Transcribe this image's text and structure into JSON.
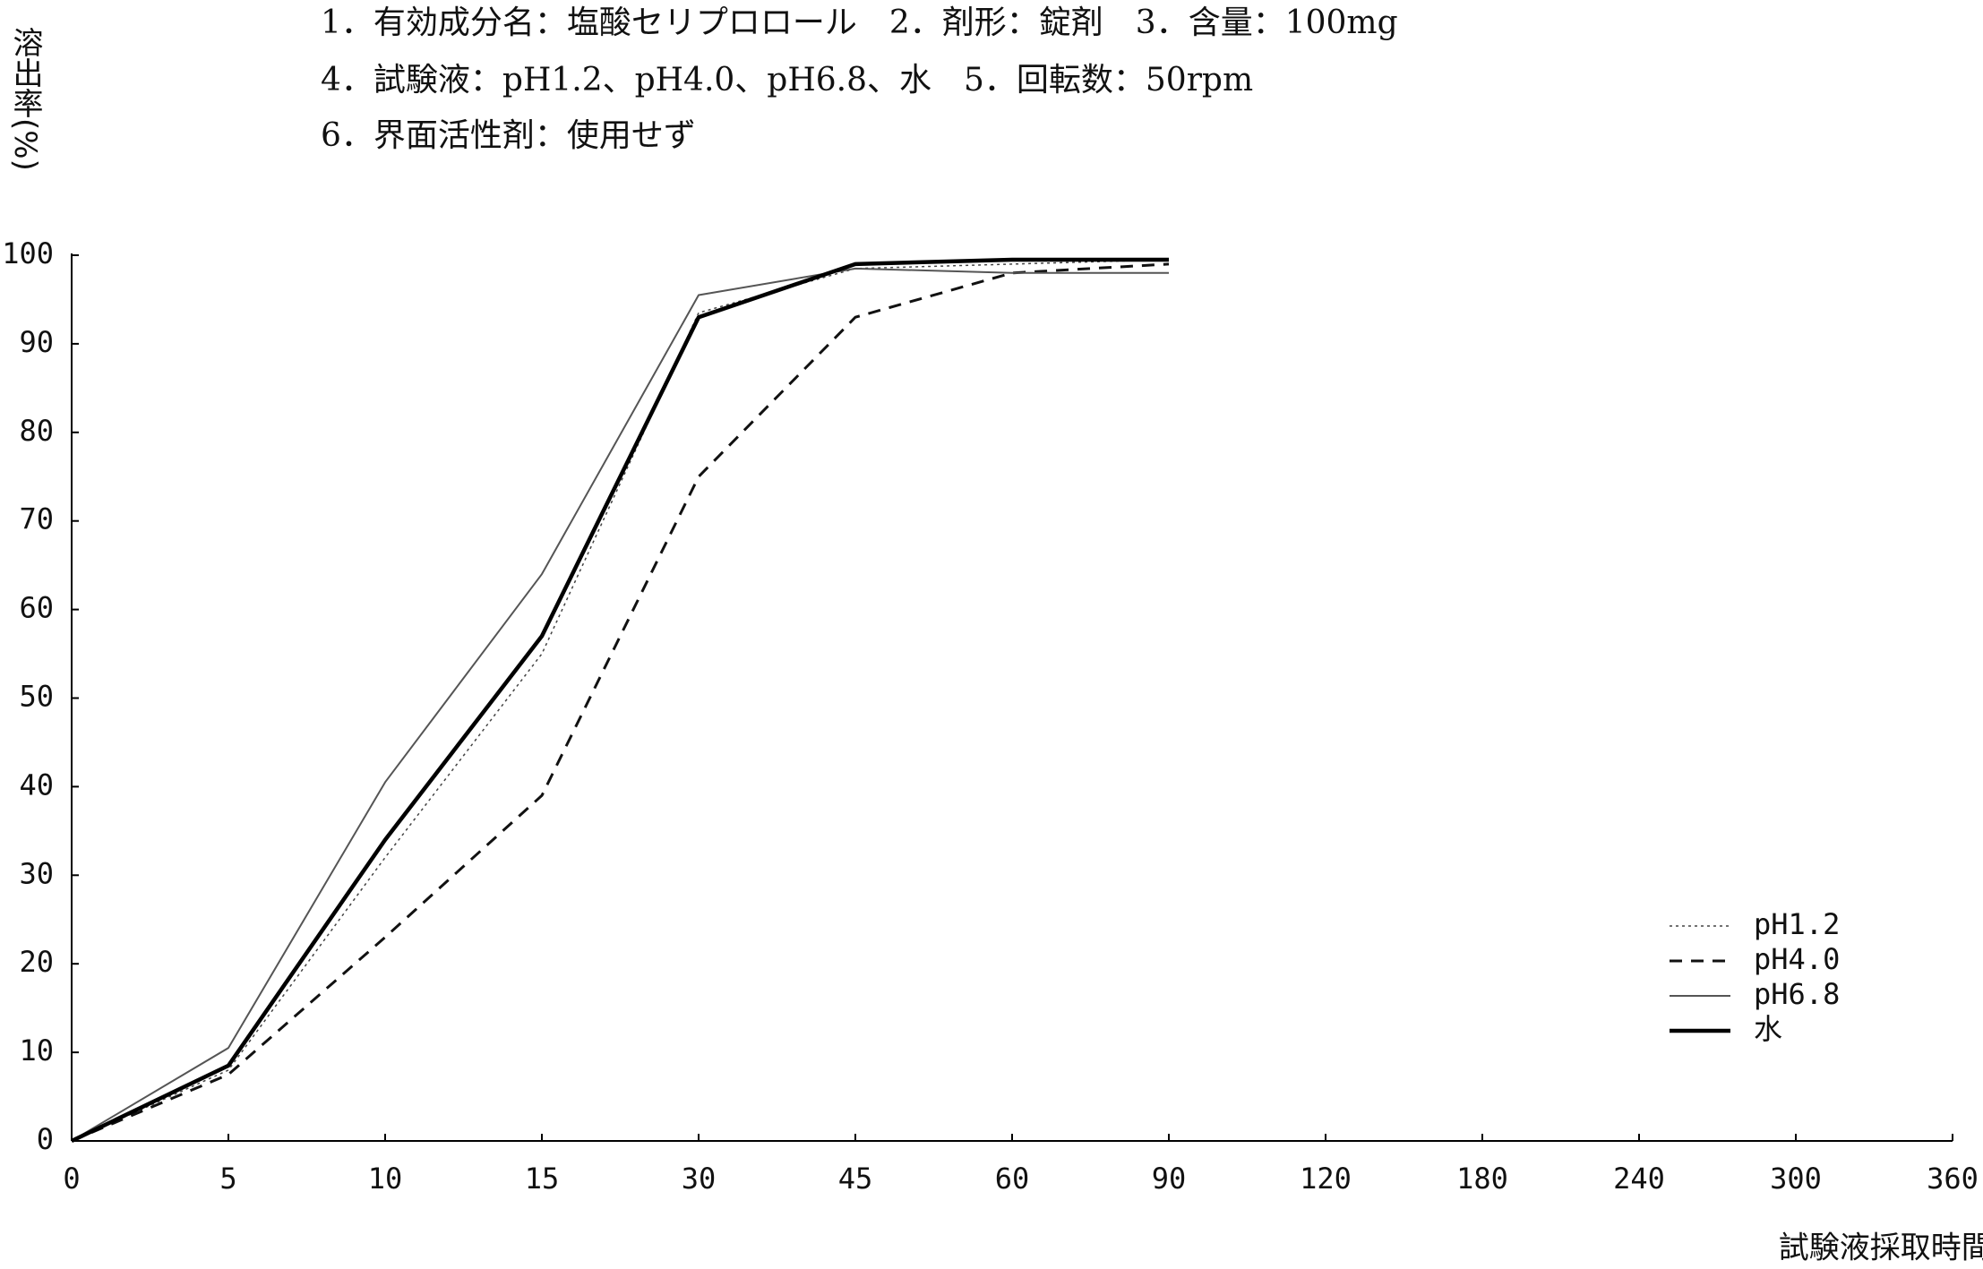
{
  "chart_data": {
    "type": "line",
    "title_lines": [
      "1．有効成分名：塩酸セリプロロール　2．剤形：錠剤　3．含量：100mg",
      "4．試験液：pH1.2、pH4.0、pH6.8、水　5．回転数：50rpm",
      "6．界面活性剤：使用せず"
    ],
    "y_label": "溶出率(%)",
    "x_label": "試験液採取時間(分)",
    "categories": [
      "0",
      "5",
      "10",
      "15",
      "30",
      "45",
      "60",
      "90",
      "120",
      "180",
      "240",
      "300",
      "360"
    ],
    "series": [
      {
        "name": "pH1.2",
        "color": "#444444",
        "width": 1.5,
        "dash": "3,4",
        "values": [
          0,
          8,
          32,
          55,
          93.5,
          98.5,
          99,
          99.5,
          null,
          null,
          null,
          null,
          null
        ]
      },
      {
        "name": "pH4.0",
        "color": "#111111",
        "width": 3,
        "dash": "14,10",
        "values": [
          0,
          7.5,
          23,
          39,
          75,
          93,
          98,
          99,
          null,
          null,
          null,
          null,
          null
        ]
      },
      {
        "name": "pH6.8",
        "color": "#555555",
        "width": 2,
        "dash": "none",
        "values": [
          0,
          10.5,
          40.5,
          64,
          95.5,
          98.5,
          98,
          98,
          null,
          null,
          null,
          null,
          null
        ]
      },
      {
        "name": "水",
        "color": "#000000",
        "width": 4.5,
        "dash": "none",
        "values": [
          0,
          8.5,
          34,
          57,
          93,
          99,
          99.5,
          99.5,
          null,
          null,
          null,
          null,
          null
        ]
      }
    ],
    "ylim": [
      0,
      100
    ],
    "yticks": [
      0,
      10,
      20,
      30,
      40,
      50,
      60,
      70,
      80,
      90,
      100
    ],
    "grid": false,
    "legend": "lower right"
  }
}
